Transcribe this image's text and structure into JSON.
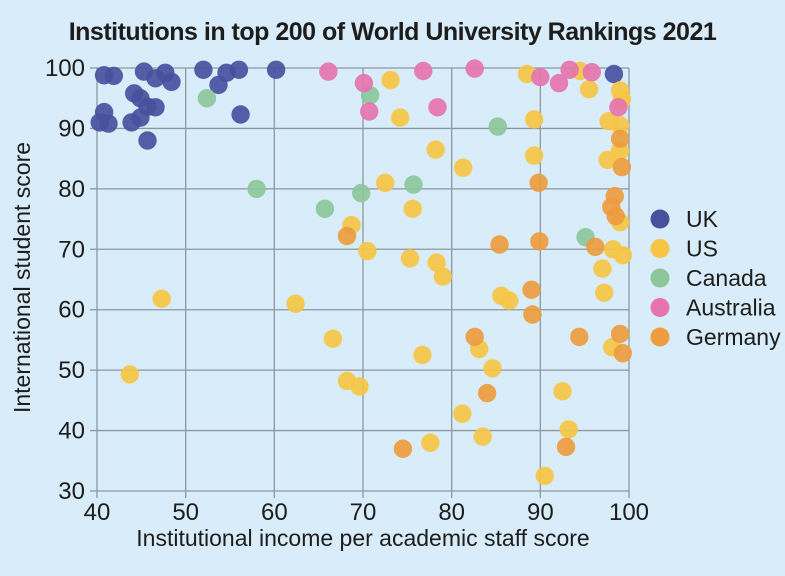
{
  "chart_data": {
    "type": "scatter",
    "title": "Institutions in top 200 of World University Rankings 2021",
    "xlabel": "Institutional income per academic staff score",
    "ylabel": "International student score",
    "xlim": [
      40,
      100
    ],
    "ylim": [
      30,
      100
    ],
    "x_ticks": [
      40,
      50,
      60,
      70,
      80,
      90,
      100
    ],
    "y_ticks": [
      100,
      90,
      80,
      70,
      60,
      50,
      40,
      30
    ],
    "grid": true,
    "legend_position": "right",
    "colors": {
      "background": "#d8ecf9",
      "grid": "#8e979e",
      "text": "#1d1d1b"
    },
    "series": [
      {
        "name": "UK",
        "color": "#47519e",
        "points": [
          [
            40.8,
            98.8
          ],
          [
            41.9,
            98.7
          ],
          [
            45.3,
            99.4
          ],
          [
            46.6,
            98.3
          ],
          [
            47.7,
            99.2
          ],
          [
            48.4,
            97.7
          ],
          [
            44.2,
            95.8
          ],
          [
            44.9,
            95.0
          ],
          [
            45.7,
            93.6
          ],
          [
            46.6,
            93.5
          ],
          [
            40.8,
            92.7
          ],
          [
            40.3,
            91.0
          ],
          [
            41.3,
            90.8
          ],
          [
            43.9,
            91.0
          ],
          [
            44.9,
            91.8
          ],
          [
            45.7,
            88.0
          ],
          [
            52.0,
            99.7
          ],
          [
            54.6,
            99.2
          ],
          [
            56.0,
            99.7
          ],
          [
            53.7,
            97.2
          ],
          [
            56.2,
            92.3
          ],
          [
            60.2,
            99.7
          ],
          [
            98.3,
            99.0
          ]
        ]
      },
      {
        "name": "US",
        "color": "#f6c544",
        "points": [
          [
            43.7,
            49.3
          ],
          [
            47.3,
            61.8
          ],
          [
            62.4,
            61.0
          ],
          [
            66.6,
            55.2
          ],
          [
            68.2,
            48.2
          ],
          [
            69.6,
            47.3
          ],
          [
            68.7,
            74.0
          ],
          [
            70.5,
            69.7
          ],
          [
            72.5,
            81.0
          ],
          [
            73.1,
            98.0
          ],
          [
            74.2,
            91.8
          ],
          [
            75.6,
            76.7
          ],
          [
            75.3,
            68.5
          ],
          [
            76.7,
            52.5
          ],
          [
            77.6,
            38.0
          ],
          [
            78.2,
            86.5
          ],
          [
            78.3,
            67.8
          ],
          [
            79.0,
            65.5
          ],
          [
            81.3,
            83.5
          ],
          [
            81.2,
            42.8
          ],
          [
            83.1,
            53.5
          ],
          [
            83.5,
            39.0
          ],
          [
            84.6,
            50.3
          ],
          [
            85.6,
            62.3
          ],
          [
            86.5,
            61.5
          ],
          [
            88.5,
            99.0
          ],
          [
            89.3,
            91.5
          ],
          [
            89.3,
            85.5
          ],
          [
            90.5,
            32.5
          ],
          [
            92.5,
            46.5
          ],
          [
            93.2,
            40.2
          ],
          [
            94.5,
            99.5
          ],
          [
            95.5,
            96.5
          ],
          [
            97.0,
            66.8
          ],
          [
            97.2,
            62.8
          ],
          [
            97.6,
            84.8
          ],
          [
            97.7,
            91.2
          ],
          [
            98.1,
            53.8
          ],
          [
            98.2,
            70.0
          ],
          [
            99.3,
            69.0
          ],
          [
            99.0,
            96.3
          ],
          [
            99.2,
            94.8
          ],
          [
            99.0,
            90.5
          ],
          [
            99.0,
            86.3
          ],
          [
            99.0,
            74.5
          ]
        ]
      },
      {
        "name": "Canada",
        "color": "#8bc79b",
        "points": [
          [
            52.4,
            95.0
          ],
          [
            58.0,
            80.0
          ],
          [
            65.7,
            76.7
          ],
          [
            69.8,
            79.3
          ],
          [
            70.8,
            95.5
          ],
          [
            75.7,
            80.7
          ],
          [
            85.2,
            90.3
          ],
          [
            95.1,
            72.0
          ]
        ]
      },
      {
        "name": "Australia",
        "color": "#e674ad",
        "points": [
          [
            66.1,
            99.4
          ],
          [
            70.1,
            97.5
          ],
          [
            70.7,
            92.8
          ],
          [
            76.8,
            99.5
          ],
          [
            78.4,
            93.5
          ],
          [
            82.6,
            99.9
          ],
          [
            90.0,
            98.5
          ],
          [
            92.1,
            97.5
          ],
          [
            93.3,
            99.7
          ],
          [
            95.8,
            99.3
          ],
          [
            98.8,
            93.5
          ]
        ]
      },
      {
        "name": "Germany",
        "color": "#ed9c3f",
        "points": [
          [
            68.2,
            72.2
          ],
          [
            74.5,
            37.0
          ],
          [
            82.6,
            55.5
          ],
          [
            84.0,
            46.2
          ],
          [
            85.4,
            70.8
          ],
          [
            89.1,
            59.2
          ],
          [
            89.0,
            63.3
          ],
          [
            89.8,
            81.0
          ],
          [
            89.9,
            71.3
          ],
          [
            92.9,
            37.3
          ],
          [
            94.4,
            55.5
          ],
          [
            96.2,
            70.4
          ],
          [
            98.4,
            78.8
          ],
          [
            98.0,
            77.0
          ],
          [
            98.5,
            75.5
          ],
          [
            99.0,
            88.3
          ],
          [
            99.2,
            83.6
          ],
          [
            99.0,
            56.0
          ],
          [
            99.3,
            52.8
          ]
        ]
      }
    ]
  }
}
